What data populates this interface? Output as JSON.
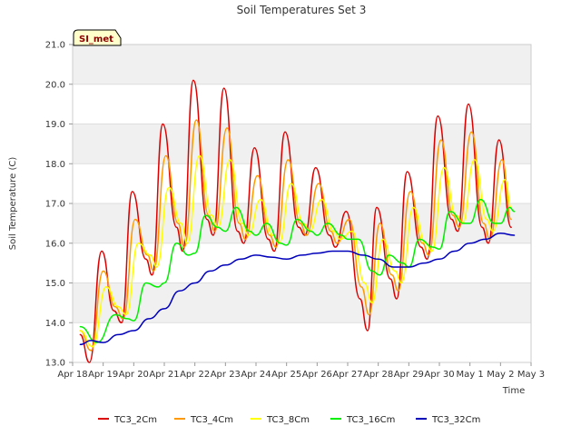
{
  "chart_data": {
    "type": "line",
    "title": "Soil Temperatures Set 3",
    "xlabel": "Time",
    "ylabel": "Soil Temperature (C)",
    "badge": "SI_met",
    "ylim": [
      13.0,
      21.0
    ],
    "yticks": [
      "13.0",
      "14.0",
      "15.0",
      "16.0",
      "17.0",
      "18.0",
      "19.0",
      "20.0",
      "21.0"
    ],
    "xlim": [
      0,
      15
    ],
    "xticks": [
      "Apr 18",
      "Apr 19",
      "Apr 20",
      "Apr 21",
      "Apr 22",
      "Apr 23",
      "Apr 24",
      "Apr 25",
      "Apr 26",
      "Apr 27",
      "Apr 28",
      "Apr 29",
      "Apr 30",
      "May 1",
      "May 2",
      "May 3"
    ],
    "grid": "horizontal bands",
    "legend_position": "bottom",
    "series": [
      {
        "name": "TC3_2Cm",
        "color": "#dd0000",
        "width": 1.5,
        "points": [
          [
            0.25,
            13.7
          ],
          [
            0.55,
            13.0
          ],
          [
            0.95,
            15.8
          ],
          [
            1.35,
            14.3
          ],
          [
            1.6,
            14.0
          ],
          [
            1.95,
            17.3
          ],
          [
            2.4,
            15.6
          ],
          [
            2.6,
            15.2
          ],
          [
            2.95,
            19.0
          ],
          [
            3.4,
            16.4
          ],
          [
            3.6,
            15.8
          ],
          [
            3.95,
            20.1
          ],
          [
            4.4,
            16.6
          ],
          [
            4.6,
            16.2
          ],
          [
            4.95,
            19.9
          ],
          [
            5.4,
            16.3
          ],
          [
            5.6,
            16.0
          ],
          [
            5.95,
            18.4
          ],
          [
            6.4,
            16.1
          ],
          [
            6.6,
            15.8
          ],
          [
            6.95,
            18.8
          ],
          [
            7.4,
            16.4
          ],
          [
            7.6,
            16.2
          ],
          [
            7.95,
            17.9
          ],
          [
            8.4,
            16.2
          ],
          [
            8.6,
            15.9
          ],
          [
            8.95,
            16.8
          ],
          [
            9.4,
            14.6
          ],
          [
            9.65,
            13.8
          ],
          [
            9.95,
            16.9
          ],
          [
            10.4,
            15.1
          ],
          [
            10.6,
            14.6
          ],
          [
            10.95,
            17.8
          ],
          [
            11.4,
            15.9
          ],
          [
            11.6,
            15.6
          ],
          [
            11.95,
            19.2
          ],
          [
            12.4,
            16.6
          ],
          [
            12.6,
            16.3
          ],
          [
            12.95,
            19.5
          ],
          [
            13.4,
            16.4
          ],
          [
            13.6,
            16.0
          ],
          [
            13.95,
            18.6
          ],
          [
            14.35,
            16.4
          ]
        ]
      },
      {
        "name": "TC3_4Cm",
        "color": "#ff9900",
        "width": 1.5,
        "points": [
          [
            0.25,
            13.8
          ],
          [
            0.6,
            13.3
          ],
          [
            1.0,
            15.3
          ],
          [
            1.4,
            14.4
          ],
          [
            1.65,
            14.1
          ],
          [
            2.05,
            16.6
          ],
          [
            2.45,
            15.7
          ],
          [
            2.65,
            15.3
          ],
          [
            3.05,
            18.2
          ],
          [
            3.45,
            16.5
          ],
          [
            3.65,
            15.9
          ],
          [
            4.05,
            19.1
          ],
          [
            4.45,
            16.7
          ],
          [
            4.65,
            16.3
          ],
          [
            5.05,
            18.9
          ],
          [
            5.45,
            16.5
          ],
          [
            5.65,
            16.1
          ],
          [
            6.05,
            17.7
          ],
          [
            6.45,
            16.2
          ],
          [
            6.65,
            15.9
          ],
          [
            7.05,
            18.1
          ],
          [
            7.45,
            16.5
          ],
          [
            7.65,
            16.2
          ],
          [
            8.05,
            17.5
          ],
          [
            8.45,
            16.3
          ],
          [
            8.65,
            16.0
          ],
          [
            9.05,
            16.6
          ],
          [
            9.45,
            14.9
          ],
          [
            9.7,
            14.2
          ],
          [
            10.05,
            16.5
          ],
          [
            10.45,
            15.2
          ],
          [
            10.65,
            14.8
          ],
          [
            11.05,
            17.3
          ],
          [
            11.45,
            16.0
          ],
          [
            11.65,
            15.7
          ],
          [
            12.05,
            18.6
          ],
          [
            12.45,
            16.7
          ],
          [
            12.65,
            16.4
          ],
          [
            13.05,
            18.8
          ],
          [
            13.45,
            16.5
          ],
          [
            13.65,
            16.1
          ],
          [
            14.05,
            18.1
          ],
          [
            14.35,
            16.6
          ]
        ]
      },
      {
        "name": "TC3_8Cm",
        "color": "#ffff00",
        "width": 1.5,
        "points": [
          [
            0.25,
            13.8
          ],
          [
            0.65,
            13.4
          ],
          [
            1.1,
            14.9
          ],
          [
            1.5,
            14.4
          ],
          [
            1.75,
            14.2
          ],
          [
            2.15,
            16.0
          ],
          [
            2.55,
            15.7
          ],
          [
            2.75,
            15.4
          ],
          [
            3.15,
            17.4
          ],
          [
            3.55,
            16.5
          ],
          [
            3.75,
            16.0
          ],
          [
            4.15,
            18.2
          ],
          [
            4.55,
            16.7
          ],
          [
            4.75,
            16.4
          ],
          [
            5.15,
            18.1
          ],
          [
            5.55,
            16.5
          ],
          [
            5.75,
            16.2
          ],
          [
            6.15,
            17.1
          ],
          [
            6.55,
            16.2
          ],
          [
            6.75,
            16.0
          ],
          [
            7.15,
            17.5
          ],
          [
            7.55,
            16.5
          ],
          [
            7.75,
            16.3
          ],
          [
            8.15,
            17.1
          ],
          [
            8.55,
            16.3
          ],
          [
            8.75,
            16.1
          ],
          [
            9.15,
            16.3
          ],
          [
            9.55,
            15.0
          ],
          [
            9.8,
            14.5
          ],
          [
            10.15,
            16.1
          ],
          [
            10.55,
            15.3
          ],
          [
            10.75,
            15.0
          ],
          [
            11.15,
            16.9
          ],
          [
            11.55,
            16.0
          ],
          [
            11.75,
            15.8
          ],
          [
            12.15,
            17.9
          ],
          [
            12.55,
            16.7
          ],
          [
            12.75,
            16.5
          ],
          [
            13.15,
            18.1
          ],
          [
            13.55,
            16.6
          ],
          [
            13.75,
            16.3
          ],
          [
            14.15,
            17.6
          ],
          [
            14.35,
            16.9
          ]
        ]
      },
      {
        "name": "TC3_16Cm",
        "color": "#00ee00",
        "width": 1.5,
        "points": [
          [
            0.25,
            13.9
          ],
          [
            0.8,
            13.5
          ],
          [
            1.4,
            14.2
          ],
          [
            1.8,
            14.1
          ],
          [
            2.0,
            14.05
          ],
          [
            2.4,
            15.0
          ],
          [
            2.8,
            14.9
          ],
          [
            3.0,
            15.0
          ],
          [
            3.4,
            16.0
          ],
          [
            3.8,
            15.7
          ],
          [
            4.0,
            15.75
          ],
          [
            4.35,
            16.7
          ],
          [
            4.75,
            16.4
          ],
          [
            5.0,
            16.3
          ],
          [
            5.35,
            16.9
          ],
          [
            5.8,
            16.3
          ],
          [
            6.0,
            16.2
          ],
          [
            6.35,
            16.5
          ],
          [
            6.8,
            16.0
          ],
          [
            7.0,
            15.95
          ],
          [
            7.35,
            16.6
          ],
          [
            7.8,
            16.3
          ],
          [
            8.0,
            16.2
          ],
          [
            8.35,
            16.5
          ],
          [
            8.8,
            16.2
          ],
          [
            9.0,
            16.1
          ],
          [
            9.35,
            16.1
          ],
          [
            9.8,
            15.3
          ],
          [
            10.05,
            15.2
          ],
          [
            10.35,
            15.7
          ],
          [
            10.8,
            15.5
          ],
          [
            11.0,
            15.4
          ],
          [
            11.35,
            16.1
          ],
          [
            11.8,
            15.9
          ],
          [
            12.0,
            15.85
          ],
          [
            12.35,
            16.8
          ],
          [
            12.8,
            16.5
          ],
          [
            13.0,
            16.5
          ],
          [
            13.35,
            17.1
          ],
          [
            13.8,
            16.5
          ],
          [
            14.0,
            16.5
          ],
          [
            14.3,
            16.9
          ],
          [
            14.45,
            16.8
          ]
        ]
      },
      {
        "name": "TC3_32Cm",
        "color": "#0000bb",
        "width": 1.5,
        "points": [
          [
            0.25,
            13.45
          ],
          [
            0.6,
            13.55
          ],
          [
            1.0,
            13.5
          ],
          [
            1.5,
            13.7
          ],
          [
            2.0,
            13.8
          ],
          [
            2.5,
            14.1
          ],
          [
            3.0,
            14.35
          ],
          [
            3.5,
            14.8
          ],
          [
            4.0,
            15.0
          ],
          [
            4.5,
            15.3
          ],
          [
            5.0,
            15.45
          ],
          [
            5.5,
            15.6
          ],
          [
            6.0,
            15.7
          ],
          [
            6.5,
            15.65
          ],
          [
            7.0,
            15.6
          ],
          [
            7.5,
            15.7
          ],
          [
            8.0,
            15.75
          ],
          [
            8.5,
            15.8
          ],
          [
            9.0,
            15.8
          ],
          [
            9.5,
            15.7
          ],
          [
            10.0,
            15.6
          ],
          [
            10.5,
            15.4
          ],
          [
            11.0,
            15.4
          ],
          [
            11.5,
            15.5
          ],
          [
            12.0,
            15.6
          ],
          [
            12.5,
            15.8
          ],
          [
            13.0,
            16.0
          ],
          [
            13.5,
            16.1
          ],
          [
            14.0,
            16.25
          ],
          [
            14.45,
            16.2
          ]
        ]
      }
    ]
  }
}
